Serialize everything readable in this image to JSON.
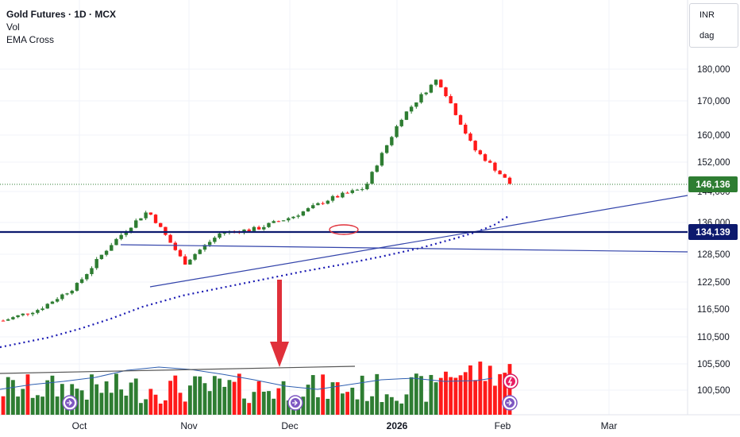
{
  "legend": {
    "title": "Gold Futures · 1D · MCX",
    "indicator_1": "Vol",
    "indicator_2": "EMA Cross"
  },
  "unit_box": {
    "currency": "INR",
    "scale": "dag"
  },
  "colors": {
    "up": "#2e7d32",
    "down": "#ff1a1a",
    "ema": "#1a1ab3",
    "trendline": "#3344aa",
    "support": "#0d1a6e",
    "highlight": "#e0303a",
    "volume_ma": "#2f5fb0"
  },
  "chart_data": {
    "type": "candlestick",
    "title": "Gold Futures · 1D · MCX",
    "y_ticks": [
      "180,000",
      "170,000",
      "160,000",
      "152,000",
      "144,000",
      "136,000",
      "128,500",
      "122,500",
      "116,500",
      "110,500",
      "105,500",
      "100,500"
    ],
    "y_tick_values": [
      180000,
      170000,
      160000,
      152000,
      144000,
      136000,
      128500,
      122500,
      116500,
      110500,
      105500,
      100500
    ],
    "x_labels": [
      "Oct",
      "Nov",
      "Dec",
      "2026",
      "Feb",
      "Mar"
    ],
    "price_tags": [
      {
        "label": "146,136",
        "value": 146136,
        "color": "#2e7d32"
      },
      {
        "label": "134,139",
        "value": 134139,
        "color": "#0d1a6e"
      }
    ],
    "candles_close_approx": [
      {
        "date": "Sep-15",
        "close": 114000
      },
      {
        "date": "Sep-25",
        "close": 116500
      },
      {
        "date": "Oct-01",
        "close": 121500
      },
      {
        "date": "Oct-15",
        "close": 131000
      },
      {
        "date": "Oct-17",
        "close": 139000
      },
      {
        "date": "Oct-28",
        "close": 126500
      },
      {
        "date": "Nov-12",
        "close": 133500
      },
      {
        "date": "Nov-28",
        "close": 134500
      },
      {
        "date": "Dec-15",
        "close": 137500
      },
      {
        "date": "Dec-30",
        "close": 142000
      },
      {
        "date": "Jan-15",
        "close": 145000
      },
      {
        "date": "Jan-23",
        "close": 165000
      },
      {
        "date": "Jan-29",
        "close": 177000
      },
      {
        "date": "Jan-30",
        "close": 156000
      },
      {
        "date": "Feb-02",
        "close": 146136
      }
    ],
    "annotations": [
      "horizontal support line at 134,139",
      "rising trendline",
      "ema cross dotted line",
      "red down arrow",
      "red ellipse highlight"
    ]
  }
}
